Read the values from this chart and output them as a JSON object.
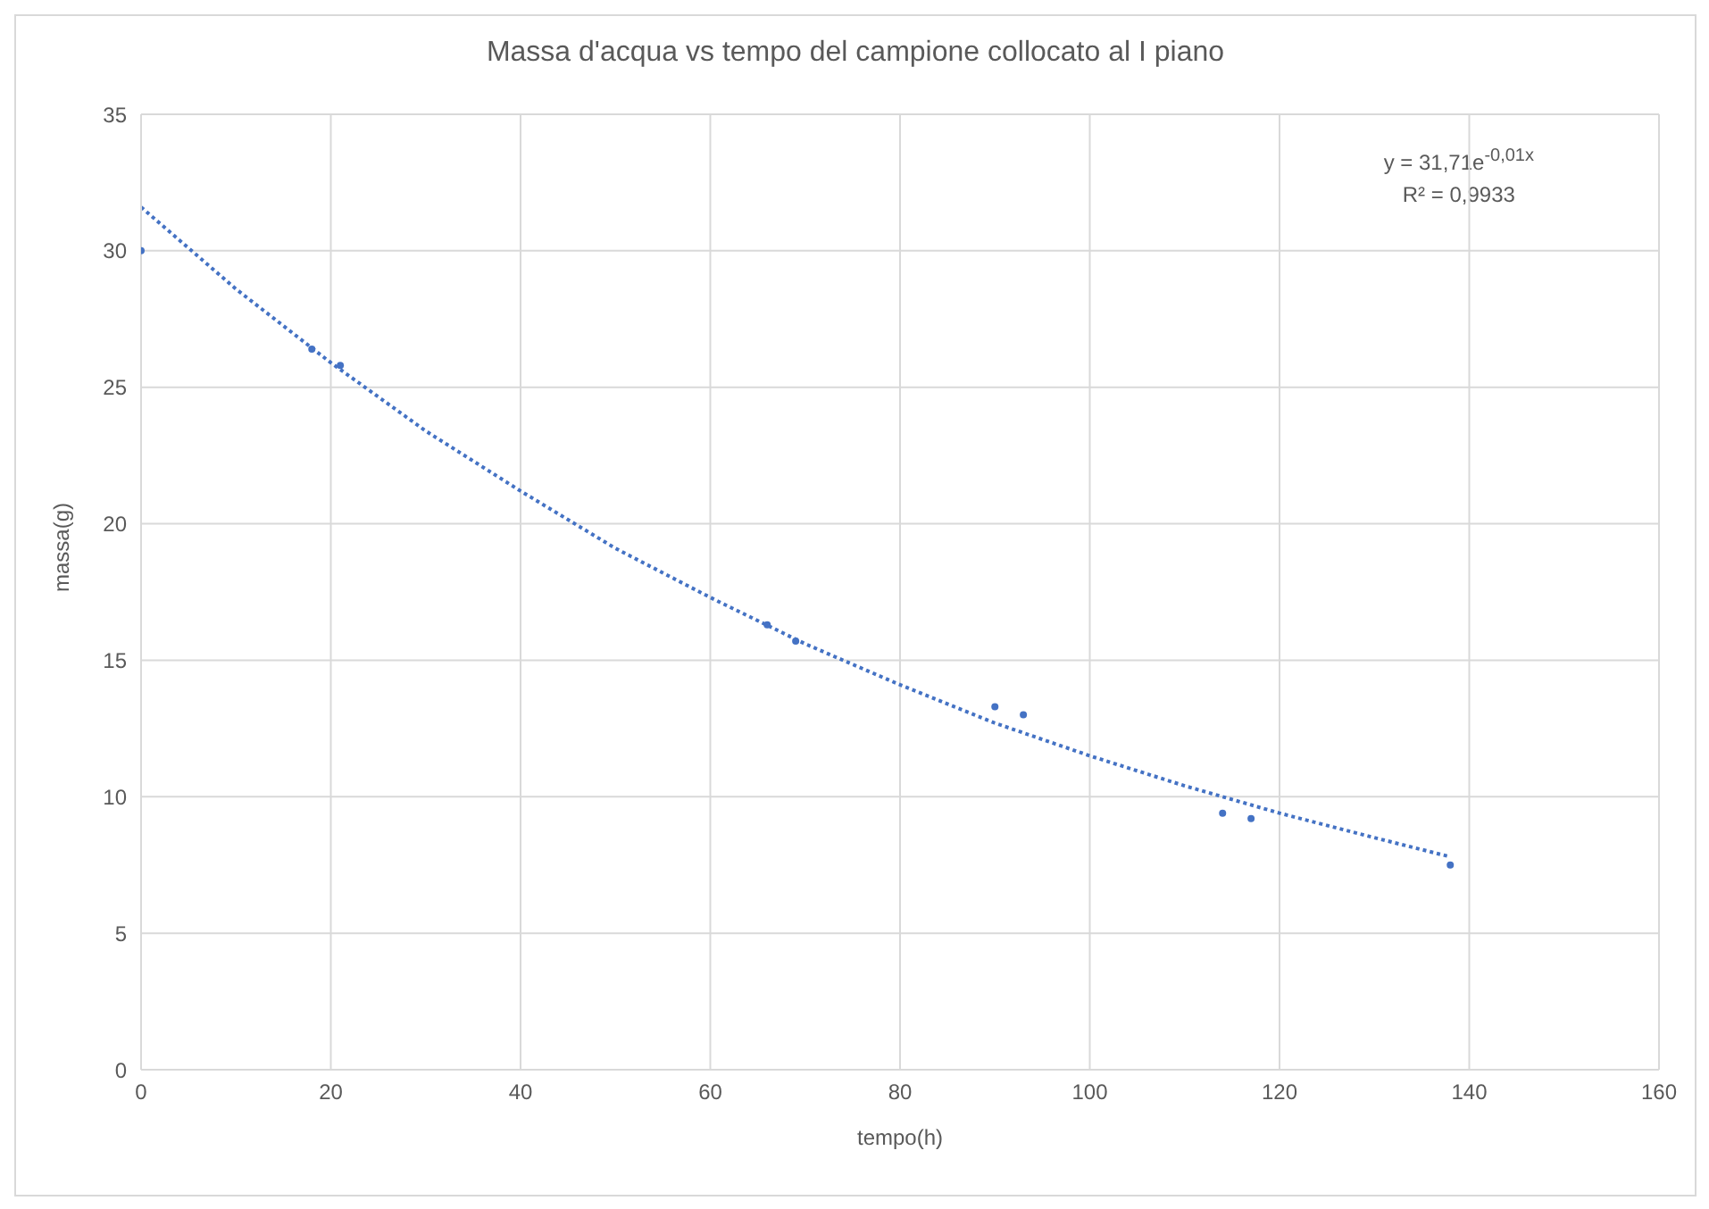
{
  "chart_data": {
    "type": "scatter",
    "title": "Massa d'acqua vs tempo del campione collocato al I piano",
    "xlabel": "tempo(h)",
    "ylabel": "massa(g)",
    "xlim": [
      0,
      160
    ],
    "xticks": [
      0,
      20,
      40,
      60,
      80,
      100,
      120,
      140,
      160
    ],
    "ylim": [
      0,
      35
    ],
    "yticks": [
      0,
      5,
      10,
      15,
      20,
      25,
      30,
      35
    ],
    "grid": true,
    "annotations": [
      "y = 31,71e$^{-0,01x}$",
      "R² = 0,9933"
    ],
    "series": [
      {
        "type": "scatter",
        "color": "#4472c4",
        "marker": "circle",
        "x": [
          0,
          18,
          21,
          66,
          69,
          90,
          93,
          114,
          117,
          138
        ],
        "values": [
          30,
          26.4,
          25.8,
          16.3,
          15.7,
          13.3,
          13,
          9.4,
          9.2,
          7.5
        ]
      },
      {
        "type": "line",
        "color": "#4472c4",
        "marker": "none",
        "line_style": "dotted",
        "x": [
          0,
          10,
          20,
          30,
          40,
          50,
          60,
          70,
          80,
          90,
          100,
          110,
          120,
          130,
          138
        ],
        "values": [
          31.6,
          28.6,
          25.9,
          23.4,
          21.2,
          19.1,
          17.3,
          15.6,
          14.1,
          12.7,
          11.5,
          10.4,
          9.4,
          8.5,
          7.8
        ]
      }
    ]
  }
}
